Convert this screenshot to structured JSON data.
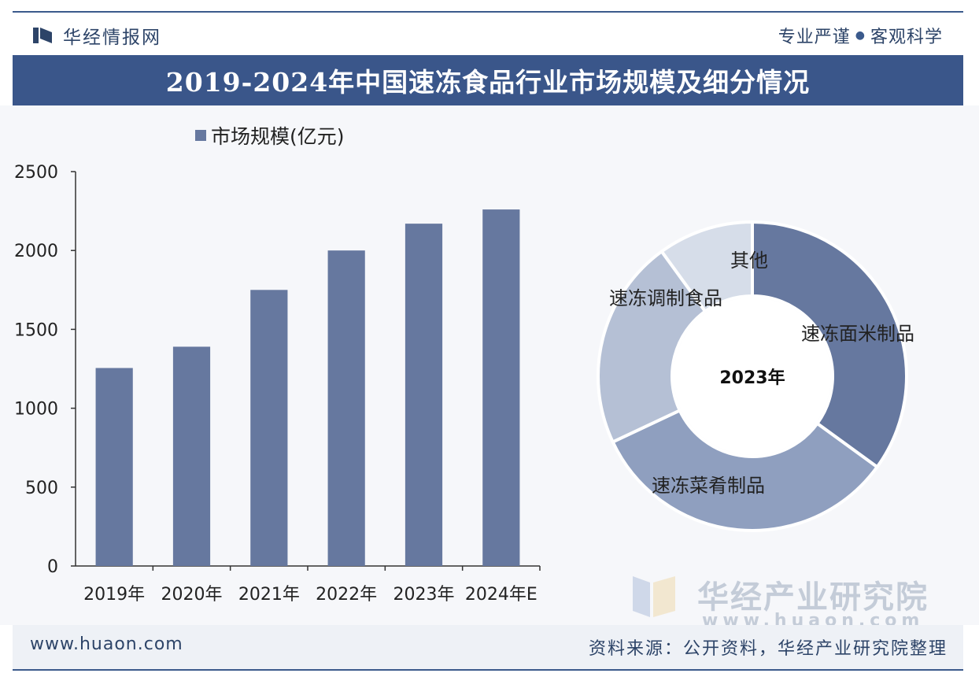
{
  "header": {
    "brand_name": "华经情报网",
    "tagline_left": "专业严谨",
    "tagline_right": "客观科学",
    "title": "2019-2024年中国速冻食品行业市场规模及细分情况"
  },
  "footer": {
    "url": "www.huaon.com",
    "source": "资料来源：公开资料，华经产业研究院整理"
  },
  "watermark": {
    "name": "华经产业研究院",
    "url": "www.huaon.com"
  },
  "colors": {
    "brand": "#3a568a",
    "bar": "#66789f",
    "slice_1": "#66789f",
    "slice_2": "#8f9fbf",
    "slice_3": "#b5c0d5",
    "slice_4": "#d6dde9"
  },
  "chart_data": [
    {
      "type": "bar",
      "legend": "市场规模(亿元)",
      "legend_position": "top-left",
      "categories": [
        "2019年",
        "2020年",
        "2021年",
        "2022年",
        "2023年",
        "2024年E"
      ],
      "values": [
        1255,
        1390,
        1750,
        2000,
        2170,
        2260
      ],
      "ylim": [
        0,
        2500
      ],
      "yticks": [
        "0",
        "500",
        "1000",
        "1500",
        "2000",
        "2500"
      ],
      "grid": false
    },
    {
      "type": "pie",
      "variant": "donut",
      "center_label": "2023年",
      "slices": [
        {
          "label": "速冻面米制品",
          "value": 35
        },
        {
          "label": "速冻菜肴制品",
          "value": 33
        },
        {
          "label": "速冻调制食品",
          "value": 22
        },
        {
          "label": "其他",
          "value": 10
        }
      ]
    }
  ]
}
